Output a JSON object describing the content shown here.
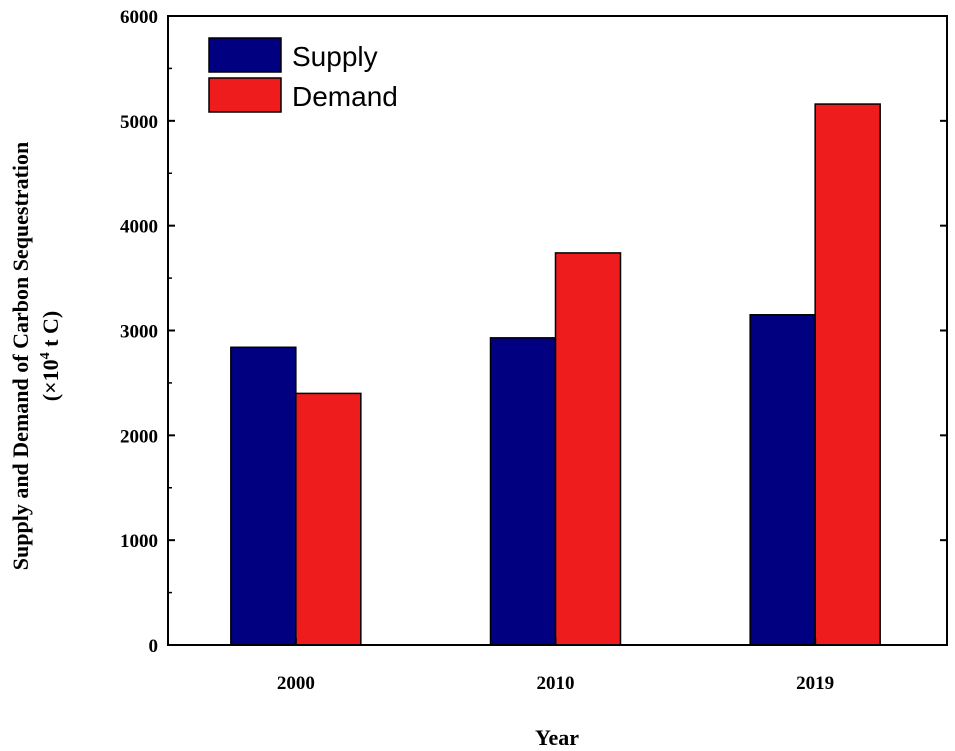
{
  "chart_data": {
    "type": "bar",
    "title": "",
    "xlabel": "Year",
    "ylabel": "Supply and Demand of Carbon Sequestration",
    "ylabel_unit_prefix": "(×10",
    "ylabel_unit_exp": "4",
    "ylabel_unit_suffix": " t C)",
    "categories": [
      "2000",
      "2010",
      "2019"
    ],
    "series": [
      {
        "name": "Supply",
        "color": "#000080",
        "values": [
          2840,
          2930,
          3150
        ]
      },
      {
        "name": "Demand",
        "color": "#ee1c1c",
        "values": [
          2400,
          3740,
          5160
        ]
      }
    ],
    "ylim": [
      0,
      6000
    ],
    "yticks": [
      0,
      1000,
      2000,
      3000,
      4000,
      5000,
      6000
    ],
    "legend_position": "top-left",
    "grid": false
  }
}
